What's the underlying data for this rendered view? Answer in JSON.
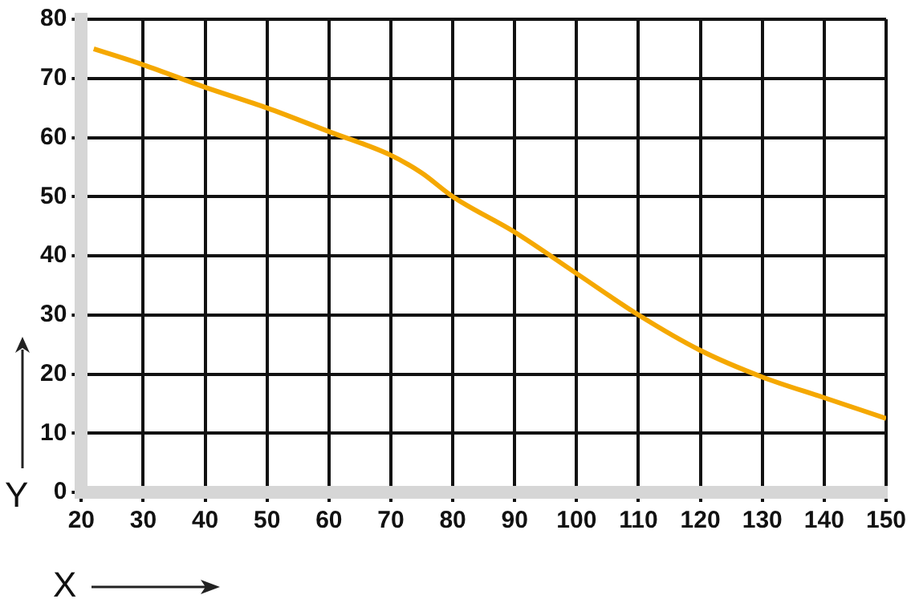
{
  "chart_data": {
    "type": "line",
    "xlabel": "X",
    "ylabel": "Y",
    "x": [
      22,
      30,
      40,
      50,
      60,
      70,
      75,
      80,
      90,
      100,
      110,
      120,
      130,
      140,
      150
    ],
    "series": [
      {
        "color": "#f5a800",
        "values": [
          75,
          72.3,
          68.5,
          65,
          61,
          57,
          54,
          50,
          44,
          37,
          30,
          24,
          19.5,
          16,
          12.5
        ]
      }
    ],
    "xlim": [
      20,
      150
    ],
    "xticks": [
      20,
      30,
      40,
      50,
      60,
      70,
      80,
      90,
      100,
      110,
      120,
      130,
      140,
      150
    ],
    "ylim": [
      0,
      80
    ],
    "yticks": [
      0,
      10,
      20,
      30,
      40,
      50,
      60,
      70,
      80
    ],
    "grid": true,
    "legend": false,
    "marker": "none",
    "line_style": "solid"
  }
}
